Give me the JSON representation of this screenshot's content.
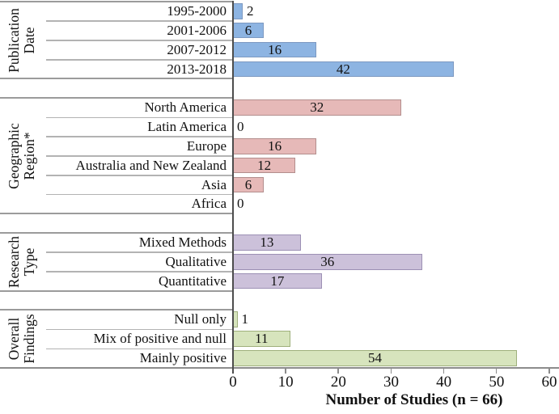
{
  "chart_data": {
    "type": "bar",
    "orientation": "horizontal",
    "title": "",
    "xlabel": "Number of Studies (n = 66)",
    "ylabel": "",
    "xlim": [
      0,
      60
    ],
    "xticks": [
      0,
      10,
      20,
      30,
      40,
      50,
      60
    ],
    "grid": false,
    "legend": "none",
    "total_n": 66,
    "groups": [
      {
        "name": "Publication Date",
        "label_lines": [
          "Publication",
          "Date"
        ],
        "fill": "#8DB4E2",
        "border": "#7D99C1",
        "bars": [
          {
            "category": "1995-2000",
            "value": 2,
            "value_label": "2",
            "label_position": "outside"
          },
          {
            "category": "2001-2006",
            "value": 6,
            "value_label": "6",
            "label_position": "inside"
          },
          {
            "category": "2007-2012",
            "value": 16,
            "value_label": "16",
            "label_position": "inside"
          },
          {
            "category": "2013-2018",
            "value": 42,
            "value_label": "42",
            "label_position": "inside"
          }
        ]
      },
      {
        "name": "Geographic Region*",
        "label_lines": [
          "Geographic",
          "Region*"
        ],
        "fill": "#E6B9B8",
        "border": "#B38E8D",
        "bars": [
          {
            "category": "North America",
            "value": 32,
            "value_label": "32",
            "label_position": "inside"
          },
          {
            "category": "Latin America",
            "value": 0,
            "value_label": "0",
            "label_position": "outside"
          },
          {
            "category": "Europe",
            "value": 16,
            "value_label": "16",
            "label_position": "inside"
          },
          {
            "category": "Australia and New Zealand",
            "value": 12,
            "value_label": "12",
            "label_position": "inside"
          },
          {
            "category": "Asia",
            "value": 6,
            "value_label": "6",
            "label_position": "inside"
          },
          {
            "category": "Africa",
            "value": 0,
            "value_label": "0",
            "label_position": "outside"
          }
        ]
      },
      {
        "name": "Research Type",
        "label_lines": [
          "Research",
          "Type"
        ],
        "fill": "#CCC1DA",
        "border": "#9C90B4",
        "bars": [
          {
            "category": "Mixed Methods",
            "value": 13,
            "value_label": "13",
            "label_position": "inside"
          },
          {
            "category": "Qualitative",
            "value": 36,
            "value_label": "36",
            "label_position": "inside"
          },
          {
            "category": "Quantitative",
            "value": 17,
            "value_label": "17",
            "label_position": "inside"
          }
        ]
      },
      {
        "name": "Overall Findings",
        "label_lines": [
          "Overall",
          "Findings"
        ],
        "fill": "#D7E4BD",
        "border": "#9FB07C",
        "bars": [
          {
            "category": "Null only",
            "value": 1,
            "value_label": "1",
            "label_position": "outside"
          },
          {
            "category": "Mix of positive and null",
            "value": 11,
            "value_label": "11",
            "label_position": "inside"
          },
          {
            "category": "Mainly positive",
            "value": 54,
            "value_label": "54",
            "label_position": "inside"
          }
        ]
      }
    ],
    "line_colors": {
      "axis": "#4d4d4d",
      "baseline": "#8c8c8c",
      "group_boundary": "#9b9b9b",
      "category_separator": "#b3b3b3"
    }
  }
}
